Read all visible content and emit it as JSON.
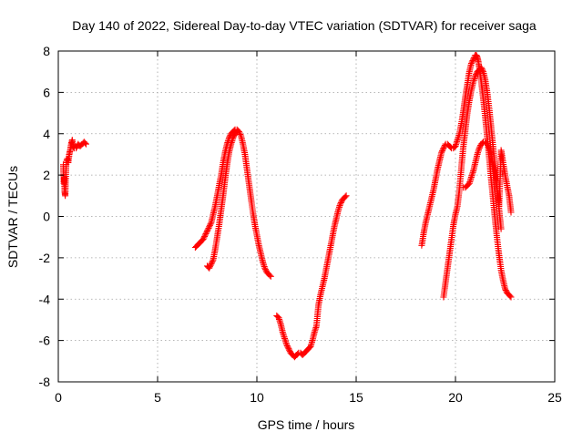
{
  "chart_data": {
    "type": "scatter",
    "title": "Day 140 of 2022, Sidereal Day-to-day VTEC variation (SDTVAR) for receiver saga",
    "xlabel": "GPS time / hours",
    "ylabel": "SDTVAR / TECUs",
    "xlim": [
      0,
      25
    ],
    "ylim": [
      -8,
      8
    ],
    "xticks": [
      "0",
      "5",
      "10",
      "15",
      "20",
      "25"
    ],
    "yticks": [
      "-8",
      "-6",
      "-4",
      "-2",
      "0",
      "2",
      "4",
      "6",
      "8"
    ],
    "grid": true,
    "marker": "plus",
    "color": "#ff0000",
    "series": [
      {
        "x": [
          0.25,
          0.28,
          0.3,
          0.32,
          0.35,
          0.4,
          0.45,
          0.5,
          0.55,
          0.6,
          0.65,
          0.7,
          0.75,
          0.8,
          0.9,
          1.0,
          1.1,
          1.2,
          1.3,
          1.4
        ],
        "values": [
          2.5,
          1.6,
          1.9,
          1.2,
          1.0,
          2.6,
          2.8,
          2.6,
          3.0,
          3.2,
          3.5,
          3.7,
          3.4,
          3.3,
          3.3,
          3.5,
          3.4,
          3.5,
          3.6,
          3.5
        ]
      },
      {
        "x": [
          6.9,
          7.0,
          7.1,
          7.2,
          7.3,
          7.4,
          7.5,
          7.6,
          7.7,
          7.8,
          7.9,
          8.0,
          8.1,
          8.2,
          8.3,
          8.4,
          8.5,
          8.6,
          8.7,
          8.8,
          8.9,
          9.0,
          9.1,
          9.2,
          9.3,
          9.4,
          9.5,
          9.6,
          9.7,
          9.8,
          9.9,
          10.0,
          10.1,
          10.2,
          10.3,
          10.4,
          10.5,
          10.6,
          10.7
        ],
        "values": [
          -1.5,
          -1.4,
          -1.3,
          -1.2,
          -1.1,
          -0.9,
          -0.7,
          -0.5,
          -0.3,
          0.1,
          0.5,
          1.0,
          1.5,
          2.0,
          2.6,
          3.1,
          3.5,
          3.8,
          4.0,
          4.1,
          4.2,
          4.2,
          4.1,
          3.9,
          3.5,
          3.0,
          2.3,
          1.6,
          0.9,
          0.2,
          -0.4,
          -0.9,
          -1.4,
          -1.8,
          -2.2,
          -2.5,
          -2.7,
          -2.8,
          -2.9
        ]
      },
      {
        "x": [
          7.5,
          7.6,
          7.7,
          7.8,
          7.9,
          8.0,
          8.1,
          8.2,
          8.3,
          8.4,
          8.5,
          8.6,
          8.7,
          8.8,
          8.9,
          9.0
        ],
        "values": [
          -2.4,
          -2.5,
          -2.3,
          -2.1,
          -1.6,
          -1.0,
          -0.4,
          0.3,
          1.0,
          1.8,
          2.5,
          3.1,
          3.5,
          3.8,
          4.0,
          4.1
        ]
      },
      {
        "x": [
          11.0,
          11.1,
          11.2,
          11.3,
          11.4,
          11.5,
          11.6,
          11.7,
          11.8,
          11.9,
          12.0,
          12.1,
          12.2,
          12.3,
          12.4,
          12.5,
          12.6,
          12.7,
          12.8,
          12.9,
          13.0,
          13.1,
          13.2,
          13.3,
          13.4,
          13.5,
          13.6,
          13.7,
          13.8,
          13.9,
          14.0,
          14.1,
          14.2,
          14.3,
          14.4,
          14.5
        ],
        "values": [
          -4.8,
          -4.9,
          -5.2,
          -5.6,
          -5.9,
          -6.2,
          -6.4,
          -6.6,
          -6.7,
          -6.8,
          -6.7,
          -6.6,
          -6.6,
          -6.7,
          -6.6,
          -6.5,
          -6.4,
          -6.3,
          -6.0,
          -5.6,
          -5.3,
          -4.3,
          -3.8,
          -3.4,
          -3.0,
          -2.5,
          -2.0,
          -1.5,
          -1.0,
          -0.5,
          -0.1,
          0.3,
          0.6,
          0.8,
          0.9,
          1.0
        ]
      },
      {
        "x": [
          18.3,
          18.4,
          18.5,
          18.6,
          18.7,
          18.8,
          18.9,
          19.0,
          19.1,
          19.2,
          19.3,
          19.4,
          19.5,
          19.6,
          19.7,
          19.8,
          19.9,
          20.0,
          20.1,
          20.2,
          20.3,
          20.4,
          20.5,
          20.6,
          20.7,
          20.8,
          20.9,
          21.0,
          21.05,
          21.1,
          21.15,
          21.2,
          21.3,
          21.4,
          21.5,
          21.6,
          21.7,
          21.8,
          21.9,
          22.0,
          22.1,
          22.2,
          22.3,
          22.4,
          22.5,
          22.6,
          22.7,
          22.8
        ],
        "values": [
          -1.4,
          -0.8,
          -0.3,
          0.1,
          0.5,
          0.9,
          1.3,
          1.8,
          2.3,
          2.7,
          3.1,
          3.3,
          3.5,
          3.5,
          3.4,
          3.3,
          3.3,
          3.4,
          3.7,
          4.0,
          4.5,
          5.1,
          5.8,
          6.4,
          7.0,
          7.4,
          7.6,
          7.8,
          7.8,
          7.7,
          7.5,
          7.2,
          6.5,
          5.7,
          4.8,
          3.8,
          2.8,
          1.8,
          0.8,
          -0.2,
          -1.1,
          -1.9,
          -2.6,
          -3.1,
          -3.5,
          -3.7,
          -3.8,
          -3.9
        ]
      },
      {
        "x": [
          19.4,
          19.5,
          19.6,
          19.7,
          19.8,
          19.9,
          20.0,
          20.1,
          20.2,
          20.3,
          20.4,
          20.5,
          20.6,
          20.7,
          20.8,
          20.9,
          21.0,
          21.1,
          21.2,
          21.3,
          21.4,
          21.5,
          21.6,
          21.7,
          21.8,
          21.9,
          22.0,
          22.1,
          22.2,
          22.3
        ],
        "values": [
          -3.9,
          -3.2,
          -2.5,
          -1.8,
          -1.1,
          -0.4,
          0.1,
          0.5,
          1.3,
          2.4,
          3.4,
          4.2,
          5.0,
          5.6,
          6.1,
          6.5,
          6.8,
          7.0,
          7.1,
          7.2,
          7.0,
          6.6,
          6.0,
          5.2,
          4.3,
          3.3,
          2.3,
          1.3,
          0.3,
          -0.6
        ]
      },
      {
        "x": [
          20.4,
          20.5,
          20.6,
          20.7,
          20.8,
          20.9,
          21.0,
          21.1,
          21.2,
          21.3,
          21.4,
          21.5,
          21.6,
          21.7,
          21.8,
          21.9,
          22.0,
          22.1,
          22.2,
          22.3,
          22.4,
          22.5,
          22.6,
          22.7,
          22.8
        ],
        "values": [
          1.4,
          1.4,
          1.5,
          1.6,
          1.9,
          2.2,
          2.6,
          3.0,
          3.3,
          3.5,
          3.6,
          3.6,
          3.5,
          3.3,
          3.0,
          2.5,
          1.9,
          1.2,
          0.5,
          3.2,
          2.6,
          2.0,
          1.5,
          1.0,
          0.2
        ]
      }
    ]
  }
}
